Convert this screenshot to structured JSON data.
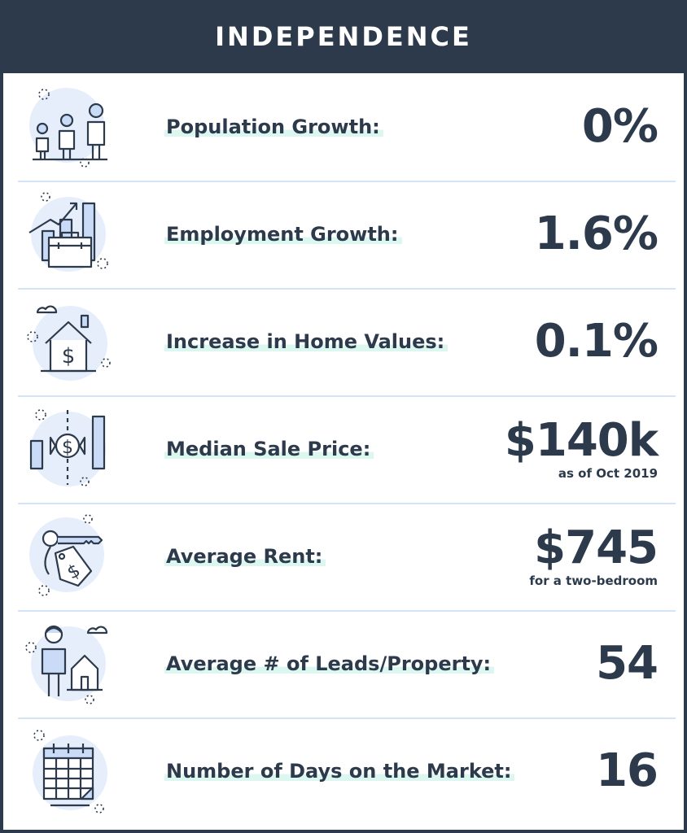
{
  "header": {
    "title": "INDEPENDENCE"
  },
  "rows": [
    {
      "label": "Population Growth:",
      "value": "0%",
      "note": "",
      "icon": "family-icon"
    },
    {
      "label": "Employment Growth:",
      "value": "1.6%",
      "note": "",
      "icon": "briefcase-growth-icon"
    },
    {
      "label": "Increase in Home Values:",
      "value": "0.1%",
      "note": "",
      "icon": "house-dollar-icon"
    },
    {
      "label": "Median Sale Price:",
      "value": "$140k",
      "note": "as of Oct 2019",
      "icon": "price-bars-icon"
    },
    {
      "label": "Average Rent:",
      "value": "$745",
      "note": "for a two-bedroom",
      "icon": "key-tag-icon"
    },
    {
      "label": "Average # of Leads/Property:",
      "value": "54",
      "note": "",
      "icon": "person-house-icon"
    },
    {
      "label": "Number of Days on the Market:",
      "value": "16",
      "note": "",
      "icon": "calendar-icon"
    }
  ],
  "colors": {
    "dark": "#2c3a4b",
    "icon_bg": "#e6eefb",
    "highlight": "#dcf7f0",
    "icon_fill": "#c9dbf7"
  }
}
